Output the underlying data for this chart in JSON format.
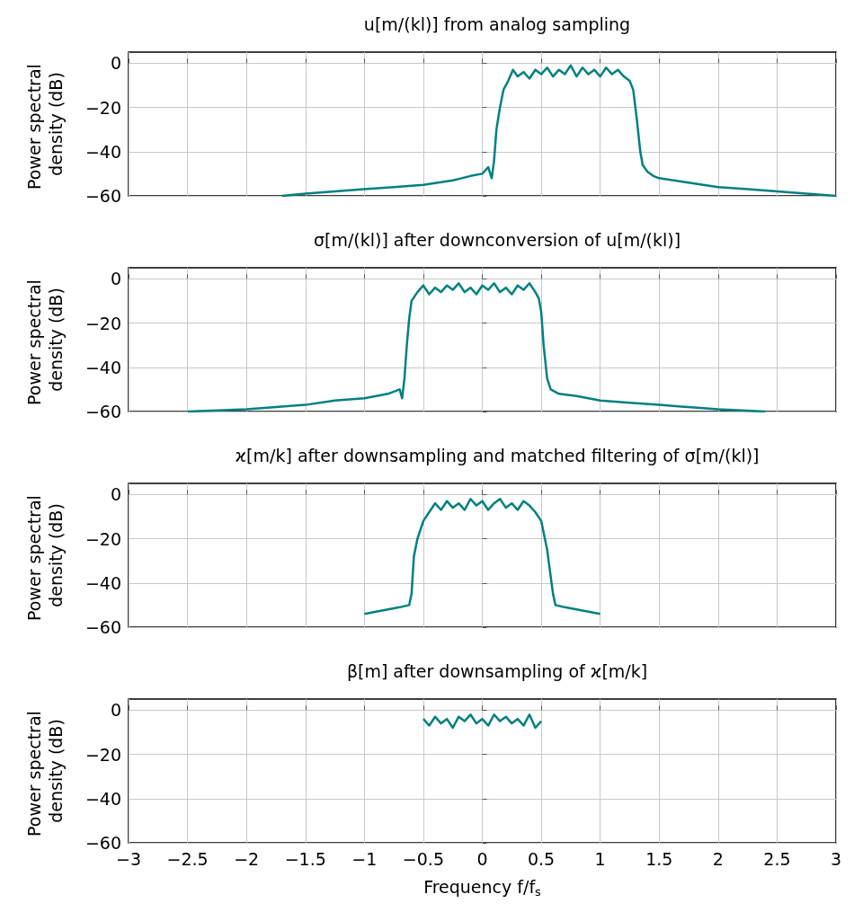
{
  "chart_data": [
    {
      "type": "line",
      "title": "u[m/(kl)] from analog sampling",
      "ylabel": "Power spectral density (dB)",
      "xlim": [
        -3,
        3
      ],
      "xticks": [
        -3,
        -2.5,
        -2,
        -1.5,
        -1,
        -0.5,
        0,
        0.5,
        1,
        1.5,
        2,
        2.5,
        3
      ],
      "ylim": [
        -60,
        5
      ],
      "yticks": [
        -60,
        -40,
        -20,
        0
      ],
      "grid": true,
      "tick_labels": "y",
      "marker": "none",
      "x": [
        -1.7,
        -1.5,
        -1.25,
        -1,
        -0.75,
        -0.5,
        -0.25,
        -0.1,
        0,
        0.05,
        0.08,
        0.1,
        0.12,
        0.15,
        0.18,
        0.22,
        0.26,
        0.3,
        0.35,
        0.4,
        0.45,
        0.5,
        0.55,
        0.6,
        0.65,
        0.7,
        0.75,
        0.8,
        0.85,
        0.9,
        0.95,
        1,
        1.05,
        1.1,
        1.15,
        1.2,
        1.25,
        1.28,
        1.31,
        1.34,
        1.36,
        1.4,
        1.45,
        1.5,
        1.75,
        2,
        2.25,
        2.5,
        2.75,
        3
      ],
      "series": [
        {
          "color": "#008080",
          "values": [
            -60,
            -59,
            -58,
            -57,
            -56,
            -55,
            -53,
            -51,
            -50,
            -47,
            -52,
            -44,
            -30,
            -20,
            -12,
            -8,
            -3,
            -6,
            -4,
            -7,
            -3,
            -5,
            -2,
            -6,
            -3,
            -5,
            -1,
            -6,
            -2,
            -5,
            -3,
            -6,
            -2,
            -5,
            -3,
            -6,
            -8,
            -12,
            -25,
            -40,
            -46,
            -49,
            -51,
            -52,
            -54,
            -56,
            -57,
            -58,
            -59,
            -60
          ]
        }
      ]
    },
    {
      "type": "line",
      "title": "σ[m/(kl)] after downconversion of u[m/(kl)]",
      "ylabel": "Power spectral density (dB)",
      "xlim": [
        -3,
        3
      ],
      "xticks": [
        -3,
        -2.5,
        -2,
        -1.5,
        -1,
        -0.5,
        0,
        0.5,
        1,
        1.5,
        2,
        2.5,
        3
      ],
      "ylim": [
        -60,
        5
      ],
      "yticks": [
        -60,
        -40,
        -20,
        0
      ],
      "grid": true,
      "tick_labels": "y",
      "marker": "none",
      "x": [
        -2.5,
        -2,
        -1.5,
        -1.25,
        -1,
        -0.8,
        -0.7,
        -0.68,
        -0.66,
        -0.64,
        -0.62,
        -0.6,
        -0.55,
        -0.5,
        -0.45,
        -0.4,
        -0.35,
        -0.3,
        -0.25,
        -0.2,
        -0.15,
        -0.1,
        -0.05,
        0,
        0.05,
        0.1,
        0.15,
        0.2,
        0.25,
        0.3,
        0.35,
        0.4,
        0.45,
        0.48,
        0.5,
        0.52,
        0.55,
        0.58,
        0.65,
        0.8,
        1,
        1.25,
        1.5,
        2,
        2.4
      ],
      "series": [
        {
          "color": "#008080",
          "values": [
            -60,
            -59,
            -57,
            -55,
            -54,
            -52,
            -50,
            -54,
            -45,
            -30,
            -18,
            -10,
            -6,
            -3,
            -7,
            -4,
            -6,
            -3,
            -5,
            -2,
            -6,
            -4,
            -7,
            -3,
            -5,
            -2,
            -6,
            -4,
            -7,
            -3,
            -5,
            -2,
            -6,
            -9,
            -15,
            -30,
            -45,
            -50,
            -52,
            -53,
            -55,
            -56,
            -57,
            -59,
            -60
          ]
        }
      ]
    },
    {
      "type": "line",
      "title": "ϰ[m/k] after downsampling and matched filtering of σ[m/(kl)]",
      "ylabel": "Power spectral density (dB)",
      "xlim": [
        -3,
        3
      ],
      "xticks": [
        -3,
        -2.5,
        -2,
        -1.5,
        -1,
        -0.5,
        0,
        0.5,
        1,
        1.5,
        2,
        2.5,
        3
      ],
      "ylim": [
        -60,
        5
      ],
      "yticks": [
        -60,
        -40,
        -20,
        0
      ],
      "grid": true,
      "tick_labels": "y",
      "marker": "none",
      "x": [
        -1,
        -0.9,
        -0.8,
        -0.7,
        -0.62,
        -0.6,
        -0.58,
        -0.55,
        -0.5,
        -0.45,
        -0.4,
        -0.35,
        -0.3,
        -0.25,
        -0.2,
        -0.15,
        -0.1,
        -0.05,
        0,
        0.05,
        0.1,
        0.15,
        0.2,
        0.25,
        0.3,
        0.35,
        0.4,
        0.45,
        0.5,
        0.55,
        0.6,
        0.62,
        0.7,
        0.8,
        0.9,
        1
      ],
      "series": [
        {
          "color": "#008080",
          "values": [
            -54,
            -53,
            -52,
            -51,
            -50,
            -45,
            -28,
            -20,
            -12,
            -8,
            -4,
            -7,
            -3,
            -6,
            -4,
            -7,
            -2,
            -5,
            -3,
            -7,
            -4,
            -2,
            -6,
            -4,
            -7,
            -3,
            -5,
            -8,
            -12,
            -25,
            -45,
            -50,
            -51,
            -52,
            -53,
            -54
          ]
        }
      ]
    },
    {
      "type": "line",
      "title": "β[m] after downsampling of ϰ[m/k]",
      "ylabel": "Power spectral density (dB)",
      "xlabel": "Frequency f/f$_{s}$",
      "xlim": [
        -3,
        3
      ],
      "xticks": [
        -3,
        -2.5,
        -2,
        -1.5,
        -1,
        -0.5,
        0,
        0.5,
        1,
        1.5,
        2,
        2.5,
        3
      ],
      "ylim": [
        -60,
        5
      ],
      "yticks": [
        -60,
        -40,
        -20,
        0
      ],
      "grid": true,
      "marker": "none",
      "x": [
        -0.5,
        -0.45,
        -0.4,
        -0.35,
        -0.3,
        -0.25,
        -0.2,
        -0.15,
        -0.1,
        -0.05,
        0,
        0.05,
        0.1,
        0.15,
        0.2,
        0.25,
        0.3,
        0.35,
        0.4,
        0.45,
        0.5
      ],
      "series": [
        {
          "color": "#008080",
          "values": [
            -4,
            -7,
            -3,
            -6,
            -4,
            -8,
            -3,
            -5,
            -2,
            -6,
            -4,
            -7,
            -2,
            -5,
            -3,
            -6,
            -4,
            -7,
            -2,
            -8,
            -5
          ]
        }
      ]
    }
  ]
}
